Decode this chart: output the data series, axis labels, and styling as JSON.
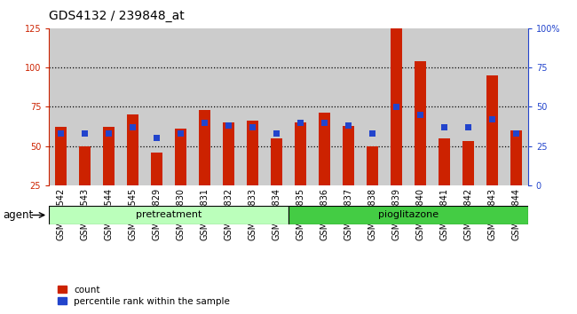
{
  "title": "GDS4132 / 239848_at",
  "categories": [
    "GSM201542",
    "GSM201543",
    "GSM201544",
    "GSM201545",
    "GSM201829",
    "GSM201830",
    "GSM201831",
    "GSM201832",
    "GSM201833",
    "GSM201834",
    "GSM201835",
    "GSM201836",
    "GSM201837",
    "GSM201838",
    "GSM201839",
    "GSM201840",
    "GSM201841",
    "GSM201842",
    "GSM201843",
    "GSM201844"
  ],
  "red_values": [
    62,
    50,
    62,
    70,
    46,
    61,
    73,
    65,
    66,
    55,
    65,
    71,
    63,
    50,
    125,
    104,
    55,
    53,
    95,
    60
  ],
  "blue_values": [
    33,
    33,
    33,
    37,
    30,
    33,
    40,
    38,
    37,
    33,
    40,
    40,
    38,
    33,
    50,
    45,
    37,
    37,
    42,
    33
  ],
  "pretreatment_count": 10,
  "pioglitazone_count": 10,
  "pretreatment_label": "pretreatment",
  "pioglitazone_label": "pioglitazone",
  "agent_label": "agent",
  "legend_count": "count",
  "legend_percentile": "percentile rank within the sample",
  "ylim_left": [
    25,
    125
  ],
  "ylim_right": [
    0,
    100
  ],
  "yticks_left": [
    25,
    50,
    75,
    100,
    125
  ],
  "yticks_right": [
    0,
    25,
    50,
    75,
    100
  ],
  "ytick_right_labels": [
    "0",
    "25",
    "50",
    "75",
    "100%"
  ],
  "red_color": "#cc2200",
  "blue_color": "#2244cc",
  "pretreat_bg": "#bbffbb",
  "pioglit_bg": "#44cc44",
  "col_bg": "#cccccc",
  "bar_width": 0.5,
  "title_fontsize": 10,
  "tick_fontsize": 7,
  "label_fontsize": 8.5
}
